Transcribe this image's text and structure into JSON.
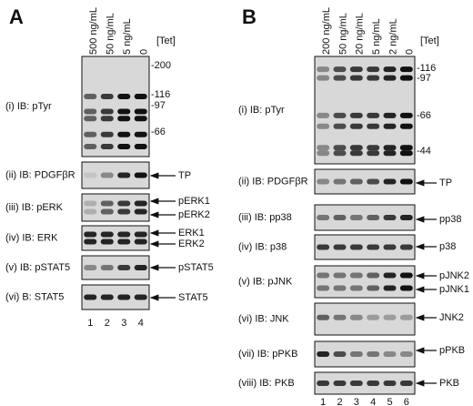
{
  "panel_a": {
    "label": "A",
    "lanes": [
      "500 ng/mL",
      "50 ng/mL",
      "5 ng/mL",
      "0"
    ],
    "tet": "[Tet]",
    "markers": [
      "-200",
      "-116",
      "-97",
      "-66"
    ],
    "blots": [
      {
        "label": "(i) IB: pTyr",
        "bands": []
      },
      {
        "label": "(ii) IB: PDGFβR",
        "bands": [
          "TP"
        ]
      },
      {
        "label": "(iii) IB: pERK",
        "bands": [
          "pERK1",
          "pERK2"
        ]
      },
      {
        "label": "(iv) IB: ERK",
        "bands": [
          "ERK1",
          "ERK2"
        ]
      },
      {
        "label": "(v) IB: pSTAT5",
        "bands": [
          "pSTAT5"
        ]
      },
      {
        "label": "(vi) B: STAT5",
        "bands": [
          "STAT5"
        ]
      }
    ],
    "lane_numbers": [
      "1",
      "2",
      "3",
      "4"
    ]
  },
  "panel_b": {
    "label": "B",
    "lanes": [
      "200 ng/mL",
      "50 ng/mL",
      "20 ng/mL",
      "5 ng/mL",
      "2 ng/mL",
      "0"
    ],
    "tet": "[Tet]",
    "markers": [
      "-116",
      "-97",
      "-66",
      "-44"
    ],
    "blots": [
      {
        "label": "(i) IB: pTyr",
        "bands": []
      },
      {
        "label": "(ii) IB: PDGFβR",
        "bands": [
          "TP"
        ]
      },
      {
        "label": "(iii) IB: pp38",
        "bands": [
          "pp38"
        ]
      },
      {
        "label": "(iv) IB: p38",
        "bands": [
          "p38"
        ]
      },
      {
        "label": "(v) IB: pJNK",
        "bands": [
          "pJNK2",
          "pJNK1"
        ]
      },
      {
        "label": "(vi) IB: JNK",
        "bands": [
          "JNK2"
        ]
      },
      {
        "label": "(vii) IB: pPKB",
        "bands": [
          "pPKB"
        ]
      },
      {
        "label": "(viii) IB: PKB",
        "bands": [
          "PKB"
        ]
      }
    ],
    "lane_numbers": [
      "1",
      "2",
      "3",
      "4",
      "5",
      "6"
    ]
  }
}
